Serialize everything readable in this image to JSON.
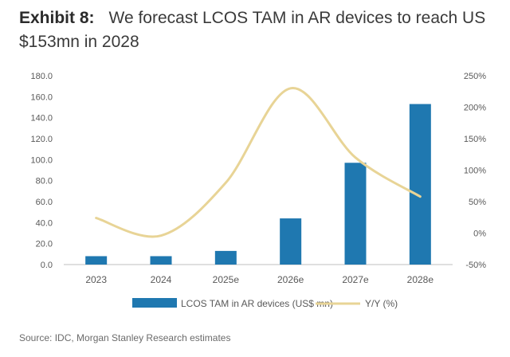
{
  "header": {
    "exhibit_label": "Exhibit 8:",
    "title": "We forecast LCOS TAM in AR devices to reach US $153mn in 2028"
  },
  "chart_data": {
    "type": "bar",
    "categories": [
      "2023",
      "2024",
      "2025e",
      "2026e",
      "2027e",
      "2028e"
    ],
    "series": [
      {
        "name": "LCOS TAM in AR devices (US$ mn)",
        "kind": "bar",
        "axis": "left",
        "color": "#1f78b0",
        "values": [
          8,
          8,
          13,
          44,
          97,
          153
        ]
      },
      {
        "name": "Y/Y (%)",
        "kind": "line",
        "axis": "right",
        "color": "#e8d496",
        "values": [
          24,
          -4,
          80,
          230,
          120,
          58
        ]
      }
    ],
    "y_left": {
      "min": 0,
      "max": 180,
      "step": 20,
      "tick_labels": [
        "0.0",
        "20.0",
        "40.0",
        "60.0",
        "80.0",
        "100.0",
        "120.0",
        "140.0",
        "160.0",
        "180.0"
      ]
    },
    "y_right": {
      "min": -50,
      "max": 250,
      "step": 50,
      "tick_labels": [
        "-50%",
        "0%",
        "50%",
        "100%",
        "150%",
        "200%",
        "250%"
      ]
    },
    "legend_position": "bottom"
  },
  "footer": {
    "source": "Source: IDC, Morgan Stanley Research estimates"
  }
}
